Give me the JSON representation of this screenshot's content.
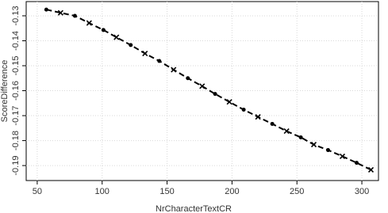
{
  "chart_data": {
    "type": "line",
    "x_label": "NrCharacterTextCR",
    "y_label": "ScoreDifference",
    "x": [
      57,
      68,
      79,
      90,
      101,
      111,
      122,
      133,
      144,
      155,
      166,
      177,
      187,
      198,
      209,
      220,
      231,
      242,
      253,
      263,
      274,
      285,
      296,
      307
    ],
    "values": [
      -0.1275,
      -0.1288,
      -0.13,
      -0.1329,
      -0.1357,
      -0.1386,
      -0.1417,
      -0.1451,
      -0.1481,
      -0.1516,
      -0.155,
      -0.1582,
      -0.1613,
      -0.1645,
      -0.1676,
      -0.1705,
      -0.1733,
      -0.1762,
      -0.1787,
      -0.1816,
      -0.1838,
      -0.1863,
      -0.1889,
      -0.1917
    ],
    "marker_cycle": [
      "dot",
      "cross"
    ],
    "color": "#000000",
    "line_style": "dashed",
    "xlim": [
      41.5,
      312.8
    ],
    "ylim": [
      -0.196,
      -0.1243
    ],
    "xticks": [
      50,
      100,
      150,
      200,
      250,
      300
    ],
    "yticks": [
      -0.19,
      -0.18,
      -0.17,
      -0.16,
      -0.15,
      -0.14,
      -0.13
    ],
    "grid": true
  }
}
